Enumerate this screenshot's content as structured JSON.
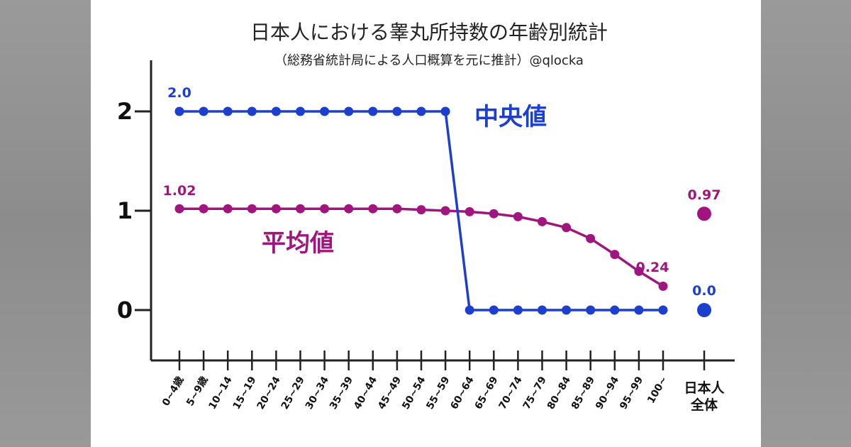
{
  "chart_data": {
    "type": "line",
    "title": "日本人における睾丸所持数の年齢別統計",
    "subtitle": "（総務省統計局による人口概算を元に推計）@qlocka",
    "categories": [
      "0~4歳",
      "5~9歳",
      "10~14",
      "15~19",
      "20~24",
      "25~29",
      "30~34",
      "35~39",
      "40~44",
      "45~49",
      "50~54",
      "55~59",
      "60~64",
      "65~69",
      "70~74",
      "75~79",
      "80~84",
      "85~89",
      "90~94",
      "95~99",
      "100~"
    ],
    "overall_category": [
      "日本人",
      "全体"
    ],
    "y_ticks": [
      "2",
      "1",
      "0"
    ],
    "ylim": [
      -0.5,
      2.5
    ],
    "grid": false,
    "series": [
      {
        "name": "中央値",
        "color": "#1c3fcf",
        "values": [
          2,
          2,
          2,
          2,
          2,
          2,
          2,
          2,
          2,
          2,
          2,
          2,
          0,
          0,
          0,
          0,
          0,
          0,
          0,
          0,
          0
        ],
        "overall": 0.0,
        "first_label": "2.0",
        "overall_label": "0.0"
      },
      {
        "name": "平均値",
        "color": "#a0157e",
        "values": [
          1.02,
          1.02,
          1.02,
          1.02,
          1.02,
          1.02,
          1.02,
          1.02,
          1.02,
          1.02,
          1.01,
          1.0,
          0.99,
          0.97,
          0.94,
          0.89,
          0.83,
          0.72,
          0.56,
          0.39,
          0.24
        ],
        "overall": 0.97,
        "first_label": "1.02",
        "last_label": "0.24",
        "overall_label": "0.97"
      }
    ]
  }
}
